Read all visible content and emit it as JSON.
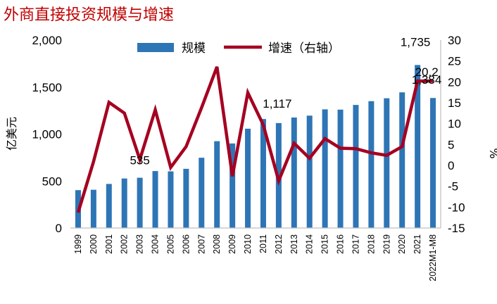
{
  "chart_data": {
    "type": "bar+line",
    "title": "外商直接投资规模与增速",
    "ylabel_left": "亿美元",
    "ylabel_right": "%",
    "ylim_left": [
      0,
      2000
    ],
    "ylim_right": [
      -15,
      30
    ],
    "yticks_left": [
      "0",
      "500",
      "1,000",
      "1,500",
      "2,000"
    ],
    "yticks_right": [
      "-15",
      "-10",
      "-5",
      "0",
      "5",
      "10",
      "15",
      "20",
      "25",
      "30"
    ],
    "categories": [
      "1999",
      "2000",
      "2001",
      "2002",
      "2003",
      "2004",
      "2005",
      "2006",
      "2007",
      "2008",
      "2009",
      "2010",
      "2011",
      "2012",
      "2013",
      "2014",
      "2015",
      "2016",
      "2017",
      "2018",
      "2019",
      "2020",
      "2021",
      "2022M1-M8"
    ],
    "series": [
      {
        "name": "规模",
        "kind": "bar",
        "color": "#2e75b6",
        "values": [
          403,
          407,
          469,
          527,
          535,
          606,
          603,
          630,
          748,
          924,
          900,
          1057,
          1160,
          1117,
          1176,
          1196,
          1263,
          1260,
          1310,
          1350,
          1381,
          1444,
          1735,
          1384
        ]
      },
      {
        "name": "增速（右轴）",
        "kind": "line",
        "color": "#a50021",
        "values": [
          -11.3,
          0.9,
          15.1,
          12.5,
          1.4,
          13.3,
          -0.5,
          4.5,
          13.8,
          23.6,
          -2.6,
          17.4,
          9.7,
          -3.7,
          5.3,
          1.7,
          6.4,
          4.1,
          4.0,
          3.0,
          2.4,
          4.5,
          20.2,
          20.2
        ]
      }
    ],
    "data_labels": [
      {
        "series": 0,
        "index": 4,
        "text": "535"
      },
      {
        "series": 0,
        "index": 13,
        "text": "1,117"
      },
      {
        "series": 0,
        "index": 22,
        "text": "1,735"
      },
      {
        "series": 0,
        "index": 23,
        "text": "1,384"
      },
      {
        "series": 1,
        "index": 22,
        "text": "20.2"
      }
    ],
    "legend": {
      "position": "top",
      "items": [
        "规模",
        "增速（右轴）"
      ]
    },
    "grid": false
  }
}
